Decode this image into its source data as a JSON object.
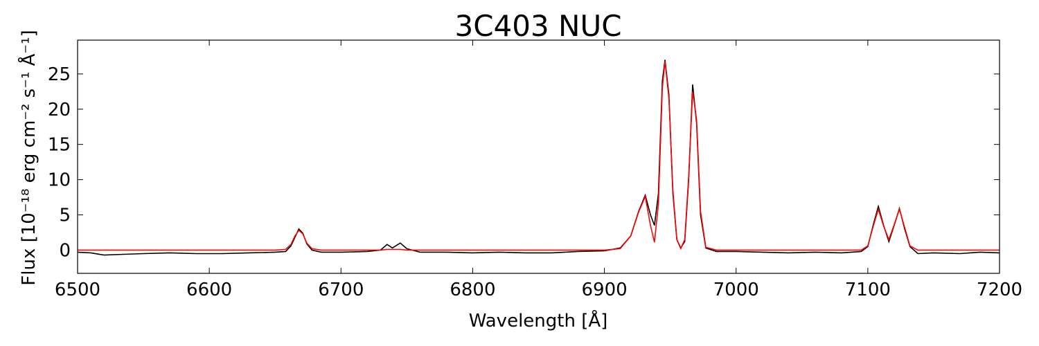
{
  "chart_data": {
    "type": "line",
    "title": "3C403 NUC",
    "x_label": "Wavelength [Å]",
    "y_label": "Flux [10⁻¹⁸ erg cm⁻² s⁻¹ Å⁻¹]",
    "x": [
      6500,
      6510,
      6520,
      6535,
      6550,
      6570,
      6590,
      6610,
      6630,
      6650,
      6658,
      6662,
      6665,
      6668,
      6671,
      6674,
      6678,
      6685,
      6700,
      6720,
      6730,
      6735,
      6739,
      6745,
      6750,
      6760,
      6780,
      6800,
      6820,
      6840,
      6860,
      6880,
      6900,
      6912,
      6920,
      6926,
      6931,
      6935,
      6938,
      6941,
      6944,
      6946,
      6949,
      6952,
      6955,
      6958,
      6961,
      6964,
      6967,
      6970,
      6973,
      6977,
      6985,
      7000,
      7020,
      7040,
      7060,
      7080,
      7095,
      7100,
      7104,
      7108,
      7112,
      7116,
      7120,
      7124,
      7128,
      7132,
      7138,
      7150,
      7170,
      7185,
      7200
    ],
    "series": [
      {
        "color": "#000000",
        "values": [
          -0.3,
          -0.4,
          -0.7,
          -0.6,
          -0.5,
          -0.4,
          -0.5,
          -0.5,
          -0.4,
          -0.3,
          -0.2,
          0.6,
          1.8,
          3.0,
          2.4,
          0.9,
          0.0,
          -0.3,
          -0.3,
          -0.2,
          0.0,
          0.8,
          0.3,
          1.0,
          0.2,
          -0.3,
          -0.3,
          -0.4,
          -0.3,
          -0.4,
          -0.4,
          -0.2,
          -0.1,
          0.3,
          2.0,
          5.5,
          7.8,
          5.0,
          3.5,
          8.0,
          24.0,
          27.0,
          22.0,
          8.0,
          1.5,
          0.3,
          1.2,
          10.0,
          23.5,
          18.0,
          5.0,
          0.3,
          -0.2,
          -0.2,
          -0.3,
          -0.4,
          -0.3,
          -0.4,
          -0.2,
          0.5,
          3.5,
          6.2,
          3.5,
          1.2,
          3.5,
          5.9,
          3.0,
          0.5,
          -0.5,
          -0.4,
          -0.5,
          -0.3,
          -0.4
        ]
      },
      {
        "color": "#ff0000",
        "values": [
          0,
          0,
          0,
          0,
          0,
          0,
          0,
          0,
          0,
          0,
          0.1,
          0.8,
          2.0,
          2.8,
          2.3,
          1.0,
          0.2,
          0,
          0,
          0,
          0,
          0.1,
          0.1,
          0.1,
          0,
          0,
          0,
          0,
          0,
          0,
          0,
          0,
          0,
          0.2,
          2.0,
          5.4,
          7.6,
          3.5,
          1.1,
          6.5,
          23.0,
          26.8,
          21.5,
          8.5,
          1.5,
          0.2,
          1.5,
          10.5,
          22.5,
          18.5,
          5.5,
          0.4,
          0,
          0,
          0,
          0,
          0,
          0,
          0,
          0.6,
          3.3,
          5.8,
          3.4,
          1.5,
          3.6,
          5.8,
          3.2,
          0.6,
          0,
          0,
          0,
          0,
          0
        ]
      }
    ],
    "xlim": [
      6500,
      7200
    ],
    "xticks": [
      6500,
      6600,
      6700,
      6800,
      6900,
      7000,
      7100,
      7200
    ],
    "ylim": [
      -3.3,
      29.8
    ],
    "yticks": [
      0,
      5,
      10,
      15,
      20,
      25
    ]
  }
}
